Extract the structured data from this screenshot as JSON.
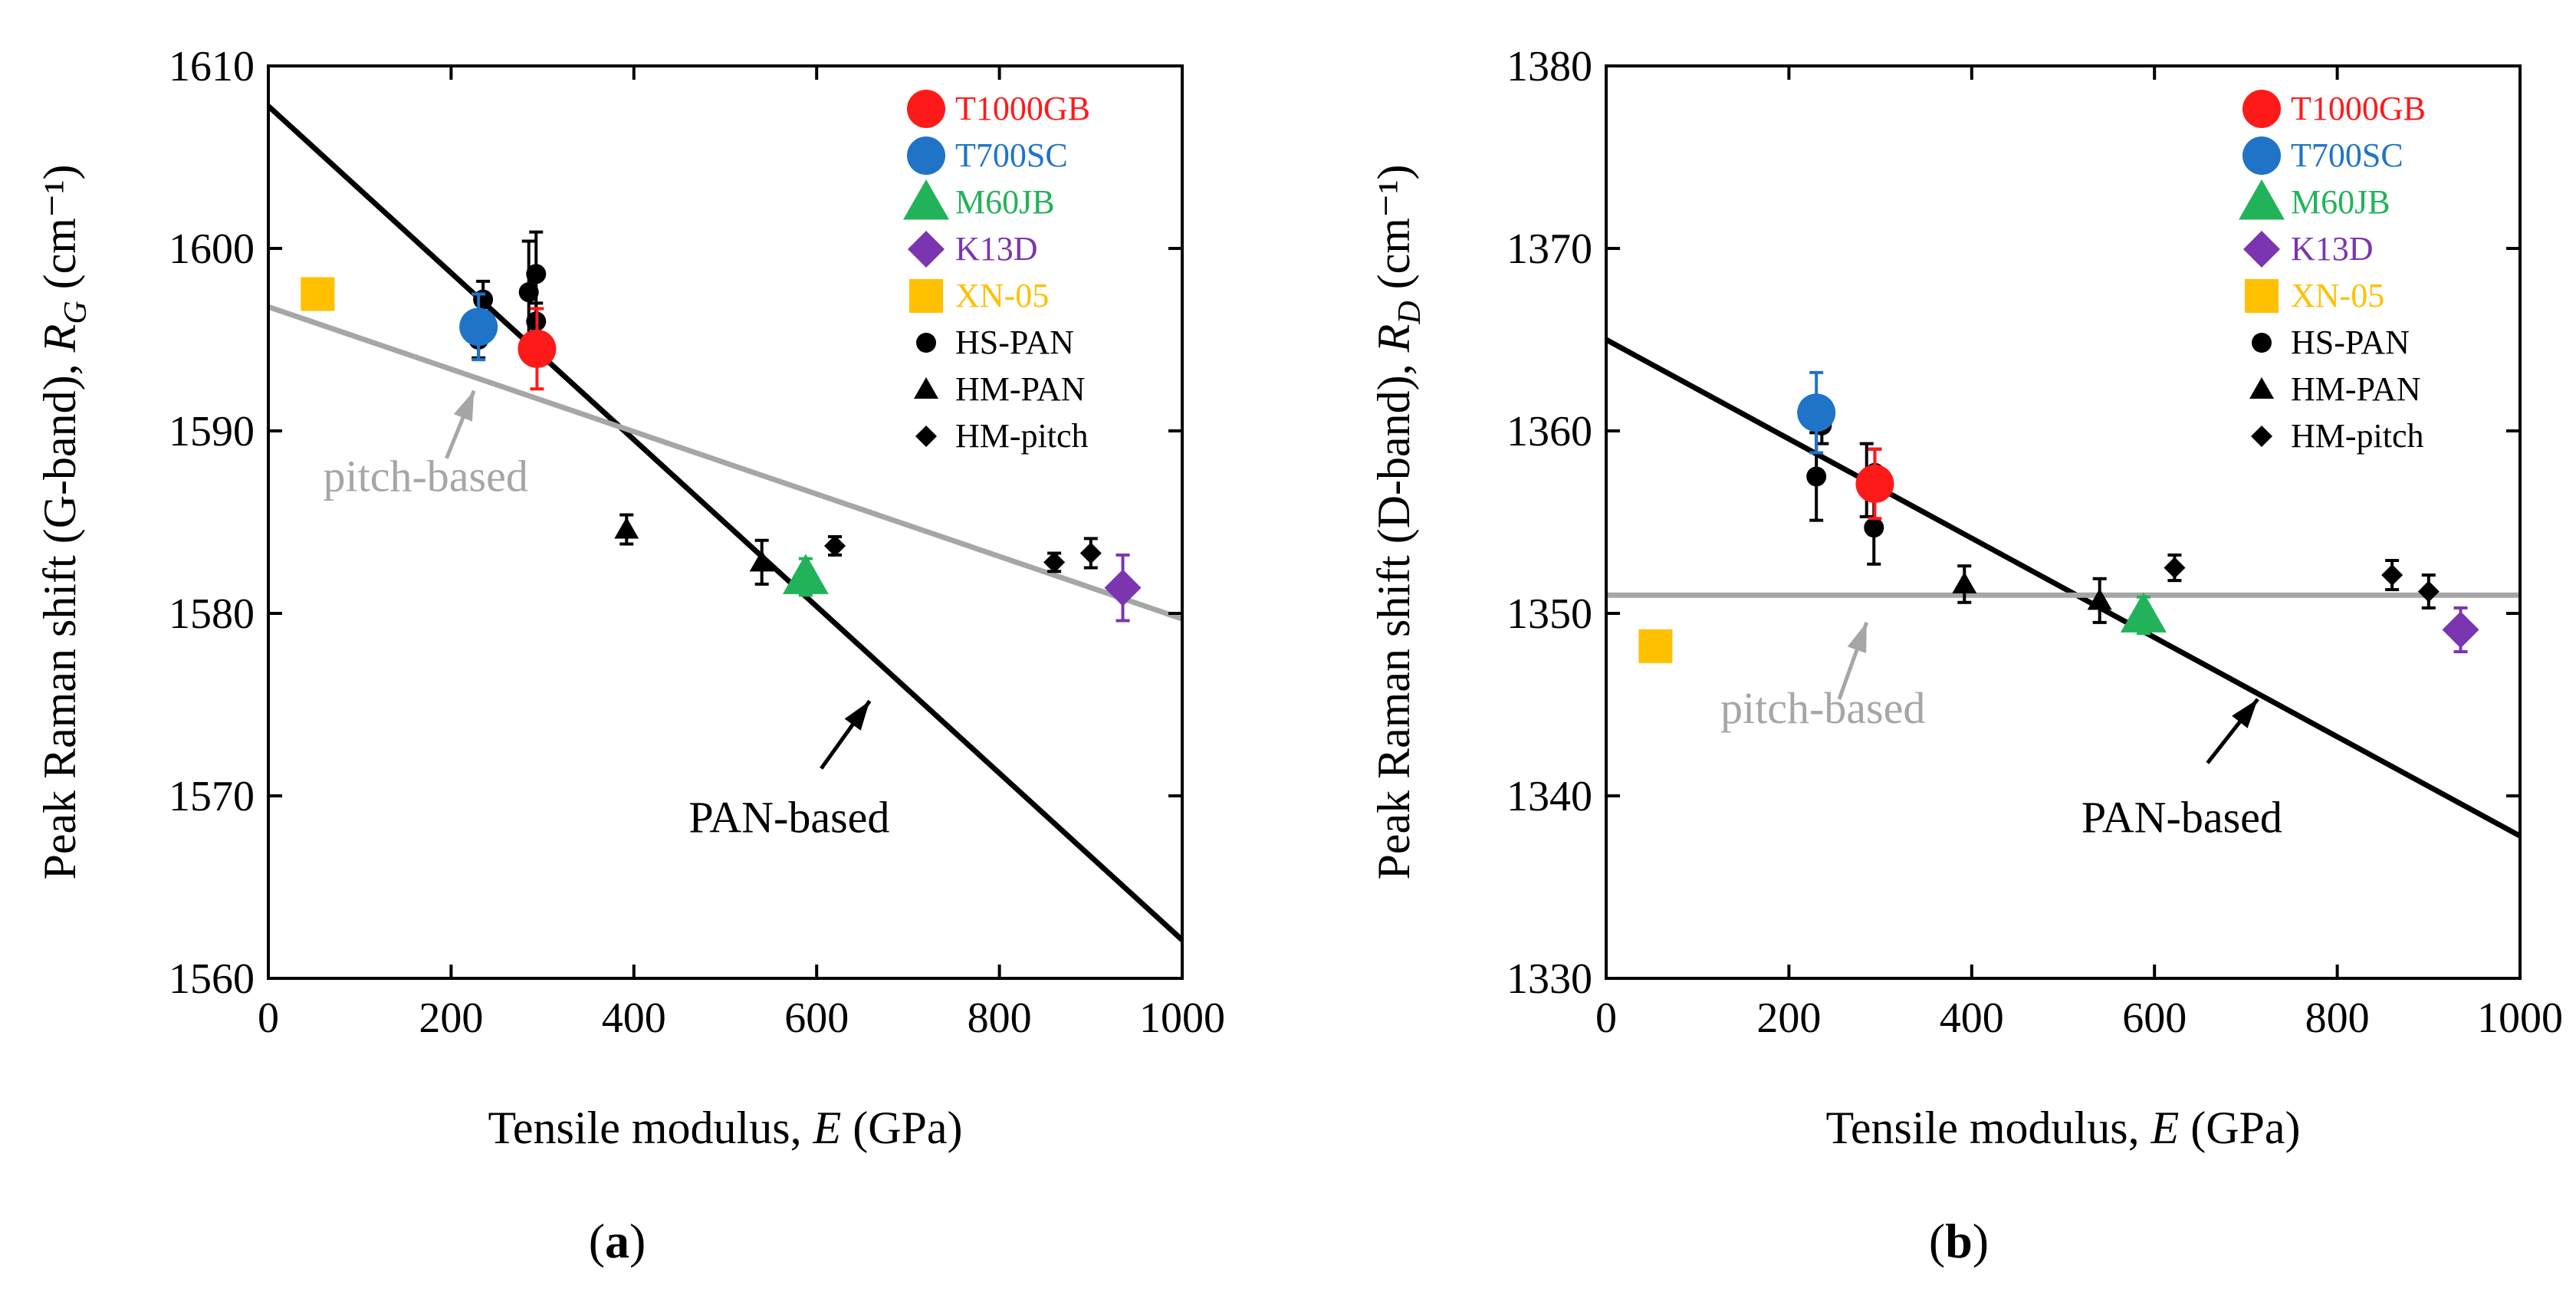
{
  "colors": {
    "t1000gb": "#ff1a1a",
    "t700sc": "#1f74c8",
    "m60jb": "#22b35a",
    "k13d": "#7b35b0",
    "xn05": "#ffc000",
    "black": "#000000",
    "pitch_line": "#a6a6a6"
  },
  "legend": [
    {
      "key": "t1000gb",
      "label": "T1000GB",
      "marker": "circle",
      "color_key": "t1000gb",
      "text_color": "t1000gb"
    },
    {
      "key": "t700sc",
      "label": "T700SC",
      "marker": "circle",
      "color_key": "t700sc",
      "text_color": "t700sc"
    },
    {
      "key": "m60jb",
      "label": "M60JB",
      "marker": "triangle",
      "color_key": "m60jb",
      "text_color": "m60jb"
    },
    {
      "key": "k13d",
      "label": "K13D",
      "marker": "diamond",
      "color_key": "k13d",
      "text_color": "k13d"
    },
    {
      "key": "xn05",
      "label": "XN-05",
      "marker": "square",
      "color_key": "xn05",
      "text_color": "xn05"
    },
    {
      "key": "hspan",
      "label": "HS-PAN",
      "marker": "circle-small",
      "color_key": "black",
      "text_color": "black"
    },
    {
      "key": "hmpan",
      "label": "HM-PAN",
      "marker": "triangle-small",
      "color_key": "black",
      "text_color": "black"
    },
    {
      "key": "hmpitch",
      "label": "HM-pitch",
      "marker": "diamond-small",
      "color_key": "black",
      "text_color": "black"
    }
  ],
  "chart_data": [
    {
      "type": "scatter",
      "panel_label": "(a)",
      "panel_letter": "a",
      "xlabel": "Tensile modulus, E (GPa)",
      "ylabel": "Peak Raman shift (G-band), R_G (cm⁻¹)",
      "xlim": [
        0,
        1000
      ],
      "ylim": [
        1560,
        1610
      ],
      "xticks": [
        0,
        200,
        400,
        600,
        800,
        1000
      ],
      "yticks": [
        1560,
        1570,
        1580,
        1590,
        1600,
        1610
      ],
      "lines": [
        {
          "name": "PAN-based",
          "color_key": "black",
          "x": [
            0,
            1000
          ],
          "y": [
            1607.8,
            1562.1
          ]
        },
        {
          "name": "pitch-based",
          "color_key": "pitch_line",
          "x": [
            0,
            1000
          ],
          "y": [
            1596.8,
            1579.7
          ]
        }
      ],
      "annotations": [
        {
          "text": "pitch-based",
          "color_key": "pitch_line",
          "x": 60,
          "y": 1586.7,
          "arrow_from": [
            195,
            1588.5
          ],
          "arrow_to": [
            225,
            1592.2
          ]
        },
        {
          "text": "PAN-based",
          "color_key": "black",
          "x": 460,
          "y": 1568.0,
          "arrow_from": [
            605,
            1571.5
          ],
          "arrow_to": [
            658,
            1575.2
          ]
        }
      ],
      "series": [
        {
          "name": "HS-PAN",
          "marker": "circle-small",
          "color_key": "black",
          "points": [
            {
              "x": 230,
              "y": 1595.0,
              "err": 1.0
            },
            {
              "x": 235,
              "y": 1597.2,
              "err": 1.0
            },
            {
              "x": 285,
              "y": 1597.6,
              "err": 2.8
            },
            {
              "x": 293,
              "y": 1598.6,
              "err": 2.3
            },
            {
              "x": 293,
              "y": 1596.0,
              "err": 1.0
            }
          ]
        },
        {
          "name": "HM-PAN",
          "marker": "triangle-small",
          "color_key": "black",
          "points": [
            {
              "x": 392,
              "y": 1584.6,
              "err": 0.8
            },
            {
              "x": 540,
              "y": 1582.8,
              "err": 1.2
            }
          ]
        },
        {
          "name": "HM-pitch",
          "marker": "diamond-small",
          "color_key": "black",
          "points": [
            {
              "x": 620,
              "y": 1583.7,
              "err": 0.5
            },
            {
              "x": 860,
              "y": 1582.8,
              "err": 0.5
            },
            {
              "x": 900,
              "y": 1583.3,
              "err": 0.8
            }
          ]
        },
        {
          "name": "T1000GB",
          "marker": "circle",
          "color_key": "t1000gb",
          "points": [
            {
              "x": 294,
              "y": 1594.5,
              "err": 2.2
            }
          ]
        },
        {
          "name": "T700SC",
          "marker": "circle",
          "color_key": "t700sc",
          "points": [
            {
              "x": 230,
              "y": 1595.7,
              "err": 1.8
            }
          ]
        },
        {
          "name": "M60JB",
          "marker": "triangle",
          "color_key": "m60jb",
          "points": [
            {
              "x": 588,
              "y": 1582.0,
              "err": 1.0
            }
          ]
        },
        {
          "name": "K13D",
          "marker": "diamond",
          "color_key": "k13d",
          "points": [
            {
              "x": 935,
              "y": 1581.4,
              "err": 1.8
            }
          ]
        },
        {
          "name": "XN-05",
          "marker": "square",
          "color_key": "xn05",
          "points": [
            {
              "x": 54,
              "y": 1597.5,
              "err": 0
            }
          ]
        }
      ]
    },
    {
      "type": "scatter",
      "panel_label": "(b)",
      "panel_letter": "b",
      "xlabel": "Tensile modulus, E (GPa)",
      "ylabel": "Peak Raman shift (D-band), R_D (cm⁻¹)",
      "xlim": [
        0,
        1000
      ],
      "ylim": [
        1330,
        1380
      ],
      "xticks": [
        0,
        200,
        400,
        600,
        800,
        1000
      ],
      "yticks": [
        1330,
        1340,
        1350,
        1360,
        1370,
        1380
      ],
      "lines": [
        {
          "name": "PAN-based",
          "color_key": "black",
          "x": [
            0,
            1000
          ],
          "y": [
            1365.0,
            1337.8
          ]
        },
        {
          "name": "pitch-based",
          "color_key": "pitch_line",
          "x": [
            0,
            1000
          ],
          "y": [
            1351.0,
            1351.0
          ]
        }
      ],
      "annotations": [
        {
          "text": "pitch-based",
          "color_key": "pitch_line",
          "x": 125,
          "y": 1344.0,
          "arrow_from": [
            255,
            1345.3
          ],
          "arrow_to": [
            285,
            1349.5
          ]
        },
        {
          "text": "PAN-based",
          "color_key": "black",
          "x": 520,
          "y": 1338.0,
          "arrow_from": [
            658,
            1341.8
          ],
          "arrow_to": [
            713,
            1345.3
          ]
        }
      ],
      "series": [
        {
          "name": "HS-PAN",
          "marker": "circle-small",
          "color_key": "black",
          "points": [
            {
              "x": 230,
              "y": 1357.5,
              "err": 2.4
            },
            {
              "x": 236,
              "y": 1360.3,
              "err": 1.0
            },
            {
              "x": 285,
              "y": 1357.3,
              "err": 2.0
            },
            {
              "x": 293,
              "y": 1354.7,
              "err": 2.0
            },
            {
              "x": 294,
              "y": 1357.7,
              "err": 1.3
            }
          ]
        },
        {
          "name": "HM-PAN",
          "marker": "triangle-small",
          "color_key": "black",
          "points": [
            {
              "x": 392,
              "y": 1351.6,
              "err": 1.0
            },
            {
              "x": 540,
              "y": 1350.7,
              "err": 1.2
            }
          ]
        },
        {
          "name": "HM-pitch",
          "marker": "diamond-small",
          "color_key": "black",
          "points": [
            {
              "x": 622,
              "y": 1352.5,
              "err": 0.7
            },
            {
              "x": 860,
              "y": 1352.1,
              "err": 0.8
            },
            {
              "x": 900,
              "y": 1351.2,
              "err": 0.9
            }
          ]
        },
        {
          "name": "T1000GB",
          "marker": "circle",
          "color_key": "t1000gb",
          "points": [
            {
              "x": 294,
              "y": 1357.1,
              "err": 1.9
            }
          ]
        },
        {
          "name": "T700SC",
          "marker": "circle",
          "color_key": "t700sc",
          "points": [
            {
              "x": 230,
              "y": 1361.0,
              "err": 2.2
            }
          ]
        },
        {
          "name": "M60JB",
          "marker": "triangle",
          "color_key": "m60jb",
          "points": [
            {
              "x": 588,
              "y": 1349.9,
              "err": 1.0
            }
          ]
        },
        {
          "name": "K13D",
          "marker": "diamond",
          "color_key": "k13d",
          "points": [
            {
              "x": 935,
              "y": 1349.1,
              "err": 1.2
            }
          ]
        },
        {
          "name": "XN-05",
          "marker": "square",
          "color_key": "xn05",
          "points": [
            {
              "x": 54,
              "y": 1348.2,
              "err": 0
            }
          ]
        }
      ]
    }
  ]
}
